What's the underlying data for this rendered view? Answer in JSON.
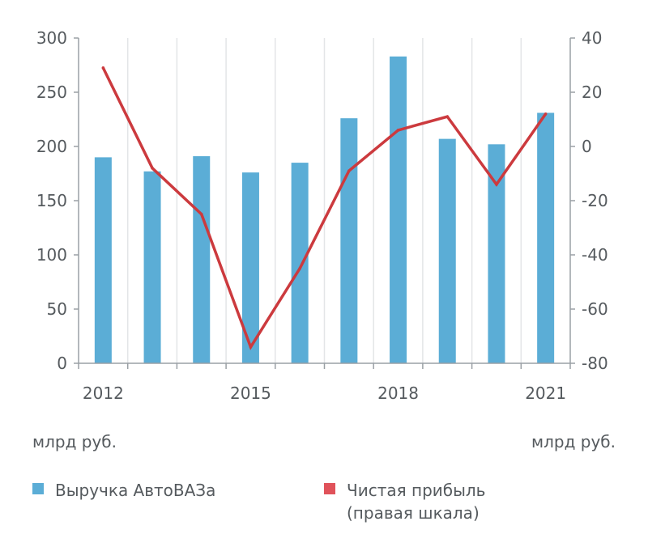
{
  "chart_data": {
    "type": "bar+line",
    "categories": [
      2012,
      2013,
      2014,
      2015,
      2016,
      2017,
      2018,
      2019,
      2020,
      2021
    ],
    "x_tick_labels": [
      "2012",
      "2015",
      "2018",
      "2021"
    ],
    "series": [
      {
        "name": "Выручка АвтоВАЗа",
        "type": "bar",
        "axis": "left",
        "color": "#5badd6",
        "values": [
          190,
          177,
          191,
          176,
          185,
          226,
          283,
          207,
          202,
          231
        ]
      },
      {
        "name": "Чистая прибыль",
        "type": "line",
        "axis": "right",
        "color": "#cc3a3e",
        "values": [
          29,
          -8,
          -25,
          -74,
          -45,
          -9,
          6,
          11,
          -14,
          12
        ]
      }
    ],
    "y_left": {
      "ylim": [
        0,
        300
      ],
      "ticks": [
        0,
        50,
        100,
        150,
        200,
        250,
        300
      ],
      "unit": "млрд руб."
    },
    "y_right": {
      "ylim": [
        -80,
        40
      ],
      "ticks": [
        -80,
        -60,
        -40,
        -20,
        0,
        20,
        40
      ],
      "tick_labels": [
        "-80",
        "-60",
        "-40",
        "-20",
        "0",
        "20",
        "40"
      ],
      "unit": "млрд руб."
    },
    "grid": "vertical",
    "legend_position": "bottom"
  },
  "units": {
    "left": "млрд руб.",
    "right": "млрд руб."
  },
  "legend": {
    "bars": {
      "label": "Выручка АвтоВАЗа",
      "color": "#5badd6"
    },
    "line": {
      "label_line1": "Чистая прибыль",
      "label_line2": "(правая шкала)",
      "color": "#cc3a3e"
    }
  }
}
